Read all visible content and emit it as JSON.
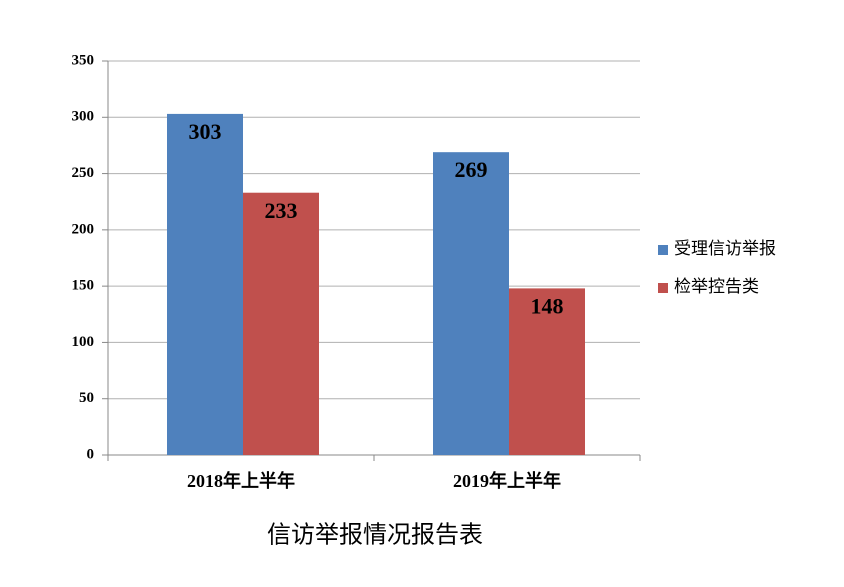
{
  "chart_data": {
    "type": "bar",
    "title": "信访举报情况报告表",
    "categories": [
      "2018年上半年",
      "2019年上半年"
    ],
    "series": [
      {
        "name": "受理信访举报",
        "color": "#4f81bd",
        "values": [
          303,
          269
        ]
      },
      {
        "name": "检举控告类",
        "color": "#c0504d",
        "values": [
          233,
          148
        ]
      }
    ],
    "ylim": [
      0,
      350
    ],
    "yticks": [
      0,
      50,
      100,
      150,
      200,
      250,
      300,
      350
    ],
    "grid": true,
    "legend": "right"
  }
}
